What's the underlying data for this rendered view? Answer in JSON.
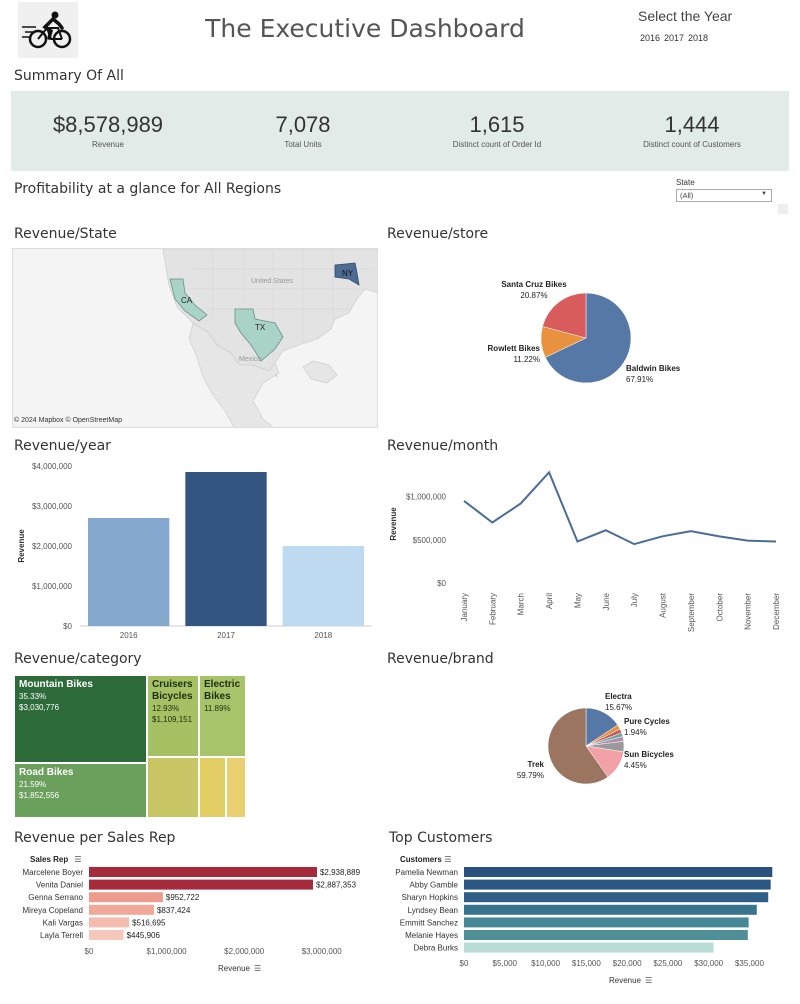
{
  "header": {
    "title": "The Executive Dashboard",
    "logo": "cyclist-icon",
    "year_selector": {
      "title": "Select the Year",
      "options": [
        "2016",
        "2017",
        "2018"
      ]
    }
  },
  "summary": {
    "title": "Summary Of All",
    "kpis": [
      {
        "value": "$8,578,989",
        "label": "Revenue"
      },
      {
        "value": "7,078",
        "label": "Total Units"
      },
      {
        "value": "1,615",
        "label": "Distinct count of Order Id"
      },
      {
        "value": "1,444",
        "label": "Distinct count of Customers"
      }
    ]
  },
  "profit": {
    "title": "Profitability at a glance for All Regions",
    "state_filter": {
      "label": "State",
      "value": "(All)"
    }
  },
  "map": {
    "title": "Revenue/State",
    "labels": [
      "United States",
      "Mexico"
    ],
    "states": [
      "CA",
      "TX",
      "NY"
    ],
    "attribution": "© 2024 Mapbox  © OpenStreetMap"
  },
  "titles": {
    "store": "Revenue/store",
    "year": "Revenue/year",
    "month": "Revenue/month",
    "category": "Revenue/category",
    "brand": "Revenue/brand",
    "sales_rep": "Revenue per Sales Rep",
    "customers": "Top Customers"
  },
  "colors": {
    "kpi_band": "#e2ebe8",
    "accent_blue": "#3a5a82",
    "rep_red": "#a52a3c",
    "cust_blue": "#2a5080"
  },
  "chart_data": [
    {
      "id": "store",
      "type": "pie",
      "title": "Revenue/store",
      "slices": [
        {
          "label": "Baldwin Bikes",
          "value": 67.91,
          "display": "67.91%",
          "color": "#5578a6"
        },
        {
          "label": "Rowlett Bikes",
          "value": 11.22,
          "display": "11.22%",
          "color": "#e8913f"
        },
        {
          "label": "Santa Cruz Bikes",
          "value": 20.87,
          "display": "20.87%",
          "color": "#d95c5c"
        }
      ]
    },
    {
      "id": "year",
      "type": "bar",
      "title": "Revenue/year",
      "ylabel": "Revenue",
      "categories": [
        "2016",
        "2017",
        "2018"
      ],
      "values": [
        2700000,
        3850000,
        2000000
      ],
      "colors": [
        "#85a8cf",
        "#34557f",
        "#bddaf0"
      ],
      "ylim": [
        0,
        4000000
      ],
      "yticks": [
        0,
        1000000,
        2000000,
        3000000,
        4000000
      ],
      "ytick_labels": [
        "$0",
        "$1,000,000",
        "$2,000,000",
        "$3,000,000",
        "$4,000,000"
      ]
    },
    {
      "id": "month",
      "type": "line",
      "title": "Revenue/month",
      "ylabel": "Revenue",
      "categories": [
        "January",
        "February",
        "March",
        "April",
        "May",
        "June",
        "July",
        "August",
        "September",
        "October",
        "November",
        "December"
      ],
      "values": [
        950000,
        700000,
        920000,
        1280000,
        480000,
        610000,
        450000,
        540000,
        600000,
        540000,
        490000,
        480000
      ],
      "ylim": [
        0,
        1400000
      ],
      "yticks": [
        0,
        500000,
        1000000
      ],
      "ytick_labels": [
        "$0",
        "$500,000",
        "$1,000,000"
      ],
      "color": "#4a6c96"
    },
    {
      "id": "category",
      "type": "treemap",
      "title": "Revenue/category",
      "items": [
        {
          "name": "Mountain Bikes",
          "pct": "35.33%",
          "value": "$3,030,776",
          "color": "#2e6b3a"
        },
        {
          "name": "Road Bikes",
          "pct": "21.59%",
          "value": "$1,852,556",
          "color": "#6a9f5c"
        },
        {
          "name": "Cruisers Bicycles",
          "pct": "12.93%",
          "value": "$1,109,151",
          "color": "#a6c064"
        },
        {
          "name": "Electric Bikes",
          "pct": "11.89%",
          "value": "",
          "color": "#a8c46a"
        }
      ]
    },
    {
      "id": "brand",
      "type": "pie",
      "title": "Revenue/brand",
      "slices": [
        {
          "label": "Electra",
          "value": 15.67,
          "display": "15.67%",
          "color": "#5578a6"
        },
        {
          "label": "Pure Cycles",
          "value": 1.94,
          "display": "1.94%",
          "color": "#e8913f"
        },
        {
          "label": "",
          "value": 1.8,
          "display": "",
          "color": "#c95f5f"
        },
        {
          "label": "",
          "value": 1.6,
          "display": "",
          "color": "#6ba7a1"
        },
        {
          "label": "",
          "value": 2.0,
          "display": "",
          "color": "#b38bb0"
        },
        {
          "label": "Sun Bicycles",
          "value": 4.45,
          "display": "4.45%",
          "color": "#9a9a9a"
        },
        {
          "label": "",
          "value": 12.75,
          "display": "",
          "color": "#f2a1a7"
        },
        {
          "label": "Trek",
          "value": 59.79,
          "display": "59.79%",
          "color": "#9c7560"
        }
      ]
    },
    {
      "id": "sales_rep",
      "type": "bar",
      "orientation": "horizontal",
      "title": "Revenue per Sales Rep",
      "category_header": "Sales Rep",
      "xlabel": "Revenue",
      "categories": [
        "Marcelene Boyer",
        "Venita Daniel",
        "Genna Serrano",
        "Mireya Copeland",
        "Kali Vargas",
        "Layla Terrell"
      ],
      "values": [
        2938889,
        2887353,
        952722,
        837424,
        516695,
        445906
      ],
      "value_labels": [
        "$2,938,889",
        "$2,887,353",
        "$952,722",
        "$837,424",
        "$516,695",
        "$445,906"
      ],
      "colors": [
        "#a52a3c",
        "#a52a3c",
        "#ec9c8c",
        "#f0a898",
        "#f4bcb0",
        "#f6c8bc"
      ],
      "xlim": [
        0,
        3300000
      ],
      "xticks": [
        0,
        1000000,
        2000000,
        3000000
      ],
      "xtick_labels": [
        "$0",
        "$1,000,000",
        "$2,000,000",
        "$3,000,000"
      ]
    },
    {
      "id": "customers",
      "type": "bar",
      "orientation": "horizontal",
      "title": "Top Customers",
      "category_header": "Customers",
      "xlabel": "Revenue",
      "categories": [
        "Pamelia Newman",
        "Abby Gamble",
        "Sharyn Hopkins",
        "Lyndsey Bean",
        "Emmitt Sanchez",
        "Melanie Hayes",
        "Debra Burks"
      ],
      "values": [
        37800,
        37600,
        37300,
        35900,
        34900,
        34800,
        30600
      ],
      "colors": [
        "#2a5080",
        "#2b5582",
        "#2f5f88",
        "#397390",
        "#478896",
        "#4f9098",
        "#b9ddd6"
      ],
      "xlim": [
        0,
        38500
      ],
      "xticks": [
        0,
        5000,
        10000,
        15000,
        20000,
        25000,
        30000,
        35000
      ],
      "xtick_labels": [
        "$0",
        "$5,000",
        "$10,000",
        "$15,000",
        "$20,000",
        "$25,000",
        "$30,000",
        "$35,000"
      ]
    }
  ]
}
